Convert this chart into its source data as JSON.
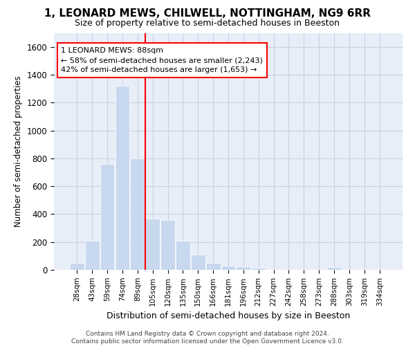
{
  "title": "1, LEONARD MEWS, CHILWELL, NOTTINGHAM, NG9 6RR",
  "subtitle": "Size of property relative to semi-detached houses in Beeston",
  "xlabel": "Distribution of semi-detached houses by size in Beeston",
  "ylabel": "Number of semi-detached properties",
  "footer_line1": "Contains HM Land Registry data © Crown copyright and database right 2024.",
  "footer_line2": "Contains public sector information licensed under the Open Government Licence v3.0.",
  "annotation_line1": "1 LEONARD MEWS: 88sqm",
  "annotation_line2": "← 58% of semi-detached houses are smaller (2,243)",
  "annotation_line3": "42% of semi-detached houses are larger (1,653) →",
  "bar_color": "#c8d8ee",
  "marker_color": "red",
  "background_color": "#ffffff",
  "plot_bg_color": "#e8eef8",
  "grid_color": "#c8d0e0",
  "categories": [
    "28sqm",
    "43sqm",
    "59sqm",
    "74sqm",
    "89sqm",
    "105sqm",
    "120sqm",
    "135sqm",
    "150sqm",
    "166sqm",
    "181sqm",
    "196sqm",
    "212sqm",
    "227sqm",
    "242sqm",
    "258sqm",
    "273sqm",
    "288sqm",
    "303sqm",
    "319sqm",
    "334sqm"
  ],
  "values": [
    50,
    210,
    760,
    1320,
    800,
    365,
    355,
    210,
    110,
    50,
    30,
    25,
    15,
    0,
    0,
    0,
    0,
    20,
    0,
    0,
    0
  ],
  "property_bin_index": 4,
  "ylim": [
    0,
    1700
  ],
  "yticks": [
    0,
    200,
    400,
    600,
    800,
    1000,
    1200,
    1400,
    1600
  ]
}
